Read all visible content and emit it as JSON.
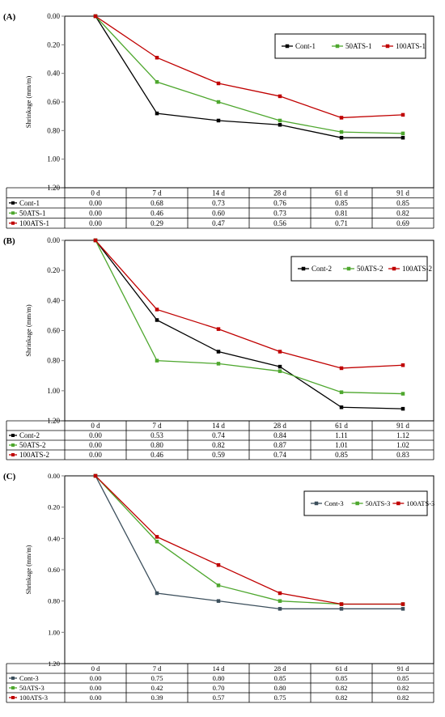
{
  "chart_data": [
    {
      "type": "line",
      "panel_label": "(A)",
      "ylabel": "Shrinkage (mm/m)",
      "y_reversed": true,
      "ylim": [
        0,
        1.2
      ],
      "yticks": [
        "0.00",
        "0.20",
        "0.40",
        "0.60",
        "0.80",
        "1.00",
        "1.20"
      ],
      "categories": [
        "0 d",
        "7 d",
        "14 d",
        "28 d",
        "61 d",
        "91 d"
      ],
      "legend_position": "top-right",
      "series": [
        {
          "name": "Cont-1",
          "color": "#000000",
          "values": [
            0.0,
            0.68,
            0.73,
            0.76,
            0.85,
            0.85
          ],
          "labels": [
            "0.00",
            "0.68",
            "0.73",
            "0.76",
            "0.85",
            "0.85"
          ]
        },
        {
          "name": "50ATS-1",
          "color": "#4ea72e",
          "values": [
            0.0,
            0.46,
            0.6,
            0.73,
            0.81,
            0.82
          ],
          "labels": [
            "0.00",
            "0.46",
            "0.60",
            "0.73",
            "0.81",
            "0.82"
          ]
        },
        {
          "name": "100ATS-1",
          "color": "#c00000",
          "values": [
            0.0,
            0.29,
            0.47,
            0.56,
            0.71,
            0.69
          ],
          "labels": [
            "0.00",
            "0.29",
            "0.47",
            "0.56",
            "0.71",
            "0.69"
          ]
        }
      ]
    },
    {
      "type": "line",
      "panel_label": "(B)",
      "ylabel": "Shrinkage (mm/m)",
      "y_reversed": true,
      "ylim": [
        0,
        1.2
      ],
      "yticks": [
        "0.00",
        "0.20",
        "0.40",
        "0.60",
        "0.80",
        "1.00",
        "1.20"
      ],
      "categories": [
        "0 d",
        "7 d",
        "14 d",
        "28 d",
        "61 d",
        "91 d"
      ],
      "legend_position": "top-right",
      "series": [
        {
          "name": "Cont-2",
          "color": "#000000",
          "values": [
            0.0,
            0.53,
            0.74,
            0.84,
            1.11,
            1.12
          ],
          "labels": [
            "0.00",
            "0.53",
            "0.74",
            "0.84",
            "1.11",
            "1.12"
          ]
        },
        {
          "name": "50ATS-2",
          "color": "#4ea72e",
          "values": [
            0.0,
            0.8,
            0.82,
            0.87,
            1.01,
            1.02
          ],
          "labels": [
            "0.00",
            "0.80",
            "0.82",
            "0.87",
            "1.01",
            "1.02"
          ]
        },
        {
          "name": "100ATS-2",
          "color": "#c00000",
          "values": [
            0.0,
            0.46,
            0.59,
            0.74,
            0.85,
            0.83
          ],
          "labels": [
            "0.00",
            "0.46",
            "0.59",
            "0.74",
            "0.85",
            "0.83"
          ]
        }
      ]
    },
    {
      "type": "line",
      "panel_label": "(C)",
      "ylabel": "Shrinkage (mm/m)",
      "y_reversed": true,
      "ylim": [
        0,
        1.2
      ],
      "yticks": [
        "0.00",
        "0.20",
        "0.40",
        "0.60",
        "0.80",
        "1.00",
        "1.20"
      ],
      "categories": [
        "0 d",
        "7 d",
        "14 d",
        "28 d",
        "61 d",
        "91 d"
      ],
      "legend_position": "top-right",
      "series": [
        {
          "name": "Cont-3",
          "color": "#3c4f5c",
          "values": [
            0.0,
            0.75,
            0.8,
            0.85,
            0.85,
            0.85
          ],
          "labels": [
            "0.00",
            "0.75",
            "0.80",
            "0.85",
            "0.85",
            "0.85"
          ]
        },
        {
          "name": "50ATS-3",
          "color": "#4ea72e",
          "values": [
            0.0,
            0.42,
            0.7,
            0.8,
            0.82,
            0.82
          ],
          "labels": [
            "0.00",
            "0.42",
            "0.70",
            "0.80",
            "0.82",
            "0.82"
          ]
        },
        {
          "name": "100ATS-3",
          "color": "#c00000",
          "values": [
            0.0,
            0.39,
            0.57,
            0.75,
            0.82,
            0.82
          ],
          "labels": [
            "0.00",
            "0.39",
            "0.57",
            "0.75",
            "0.82",
            "0.82"
          ]
        }
      ]
    }
  ]
}
